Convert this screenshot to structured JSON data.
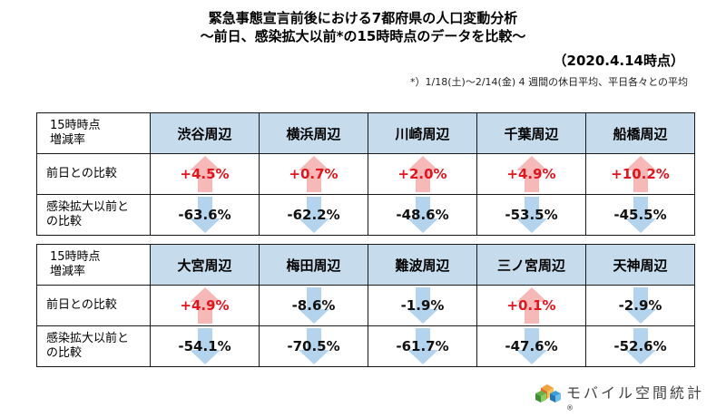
{
  "header": {
    "title1": "緊急事態宣言前後における7都府県の人口変動分析",
    "title2": "〜前日、感染拡大以前*の15時時点のデータを比較〜",
    "date": "（2020.4.14時点）",
    "note": "*）1/18(土)〜2/14(金) 4 週間の休日平均、平日各々との平均"
  },
  "table1": {
    "header_label": [
      "15時時点",
      "増減率"
    ],
    "areas": [
      "渋谷周辺",
      "横浜周辺",
      "川崎周辺",
      "千葉周辺",
      "船橋周辺"
    ],
    "row1_label": "前日との比較",
    "row1": [
      "+4.5%",
      "+0.7%",
      "+2.0%",
      "+4.9%",
      "+10.2%"
    ],
    "row1_dir": [
      "up",
      "up",
      "up",
      "up",
      "up"
    ],
    "row2_label": [
      "感染拡大以前と",
      "の比較"
    ],
    "row2": [
      "-63.6%",
      "-62.2%",
      "-48.6%",
      "-53.5%",
      "-45.5%"
    ],
    "row2_dir": [
      "down",
      "down",
      "down",
      "down",
      "down"
    ]
  },
  "table2": {
    "header_label": [
      "15時時点",
      "増減率"
    ],
    "areas": [
      "大宮周辺",
      "梅田周辺",
      "難波周辺",
      "三ノ宮周辺",
      "天神周辺"
    ],
    "row1_label": "前日との比較",
    "row1": [
      "+4.9%",
      "-8.6%",
      "-1.9%",
      "+0.1%",
      "-2.9%"
    ],
    "row1_dir": [
      "up",
      "down",
      "down",
      "up",
      "down"
    ],
    "row2_label": [
      "感染拡大以前と",
      "の比較"
    ],
    "row2": [
      "-54.1%",
      "-70.5%",
      "-61.7%",
      "-47.6%",
      "-52.6%"
    ],
    "row2_dir": [
      "down",
      "down",
      "down",
      "down",
      "down"
    ]
  },
  "logo": {
    "text": "モバイル空間統計",
    "mark": "®"
  },
  "colors": {
    "header_bg": "#c6dcec",
    "up_arrow": "#f7b8b8",
    "down_arrow": "#b4d3ec",
    "up_text": "#e8121b"
  }
}
